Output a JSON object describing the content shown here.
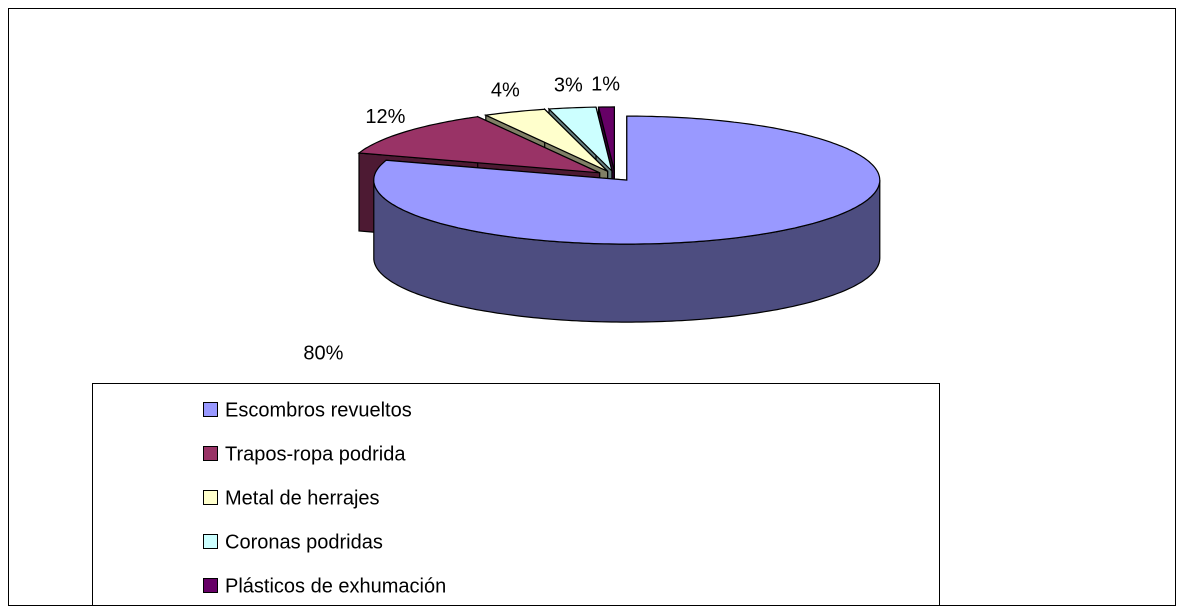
{
  "chart_data": {
    "type": "pie3d",
    "categories": [
      "Escombros revueltos",
      "Trapos-ropa podrida",
      "Metal de herrajes",
      "Coronas podridas",
      "Plásticos de exhumación"
    ],
    "values": [
      80,
      12,
      4,
      3,
      1
    ],
    "value_labels": [
      "80%",
      "12%",
      "4%",
      "3%",
      "1%"
    ],
    "colors": [
      "#9999ff",
      "#993366",
      "#ffffcc",
      "#ccffff",
      "#660066"
    ],
    "legend": "bottom"
  }
}
